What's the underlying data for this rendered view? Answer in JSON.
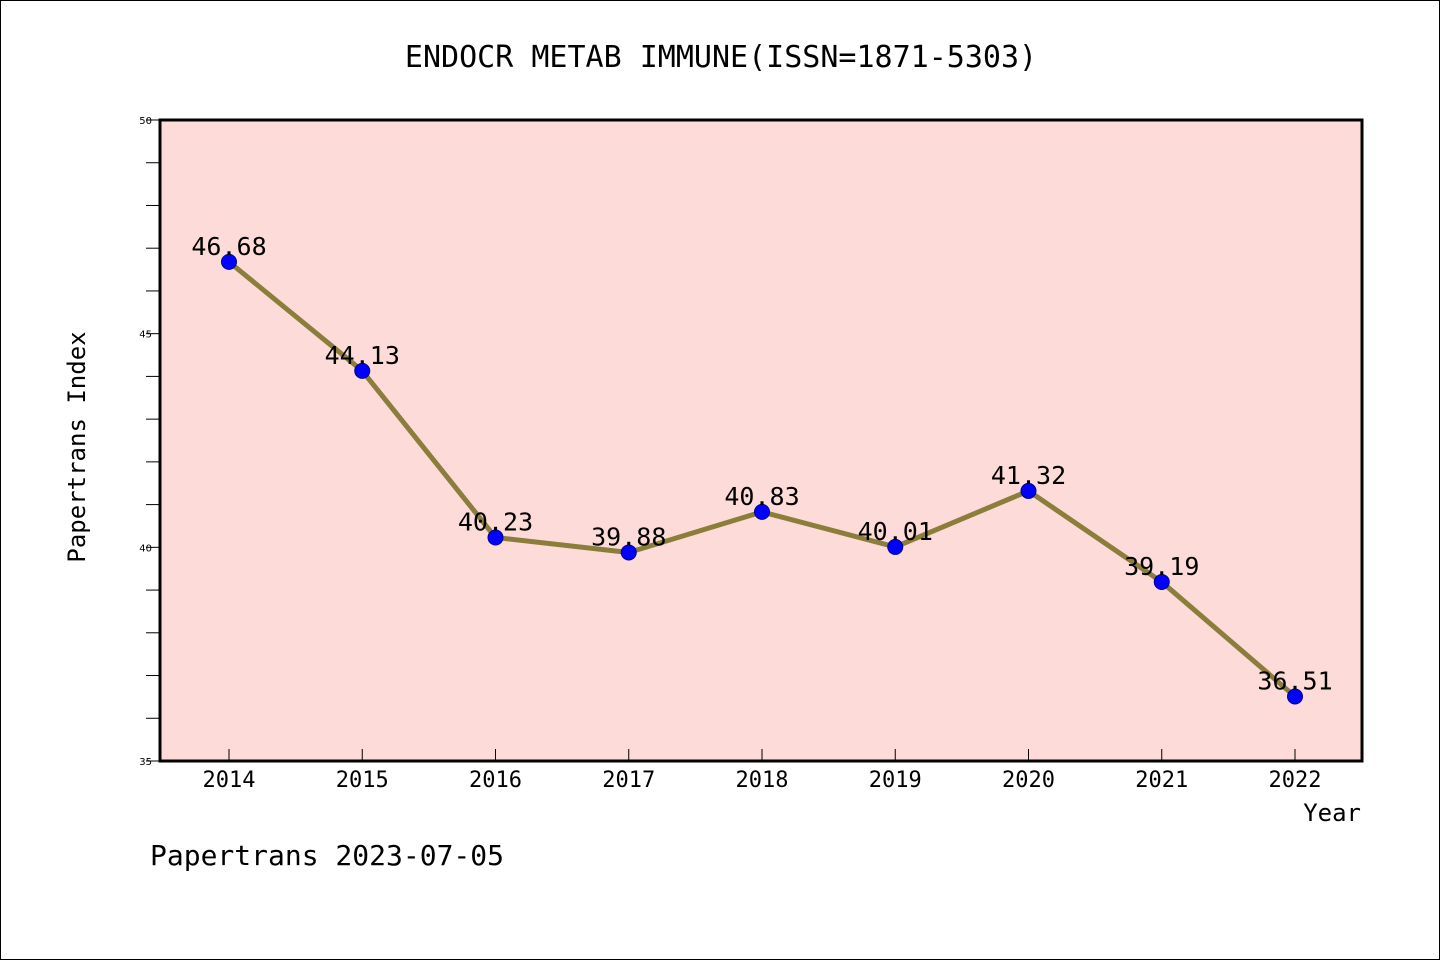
{
  "chart_data": {
    "type": "line",
    "title": "ENDOCR METAB IMMUNE(ISSN=1871-5303)",
    "xlabel": "Year",
    "ylabel": "Papertrans Index",
    "categories": [
      "2014",
      "2015",
      "2016",
      "2017",
      "2018",
      "2019",
      "2020",
      "2021",
      "2022"
    ],
    "values": [
      46.68,
      44.13,
      40.23,
      39.88,
      40.83,
      40.01,
      41.32,
      39.19,
      36.51
    ],
    "data_labels": [
      "46.68",
      "44.13",
      "40.23",
      "39.88",
      "40.83",
      "40.01",
      "41.32",
      "39.19",
      "36.51"
    ],
    "ylim": [
      35,
      50
    ],
    "yticks": [
      35,
      40,
      45,
      50
    ],
    "ytick_labels": [
      "35",
      "40",
      "45",
      "50"
    ],
    "grid": false,
    "colors": {
      "plot_background": "#fddbd8",
      "line": "#8b7d3a",
      "marker": "#0000ff"
    }
  },
  "footer": "Papertrans 2023-07-05"
}
